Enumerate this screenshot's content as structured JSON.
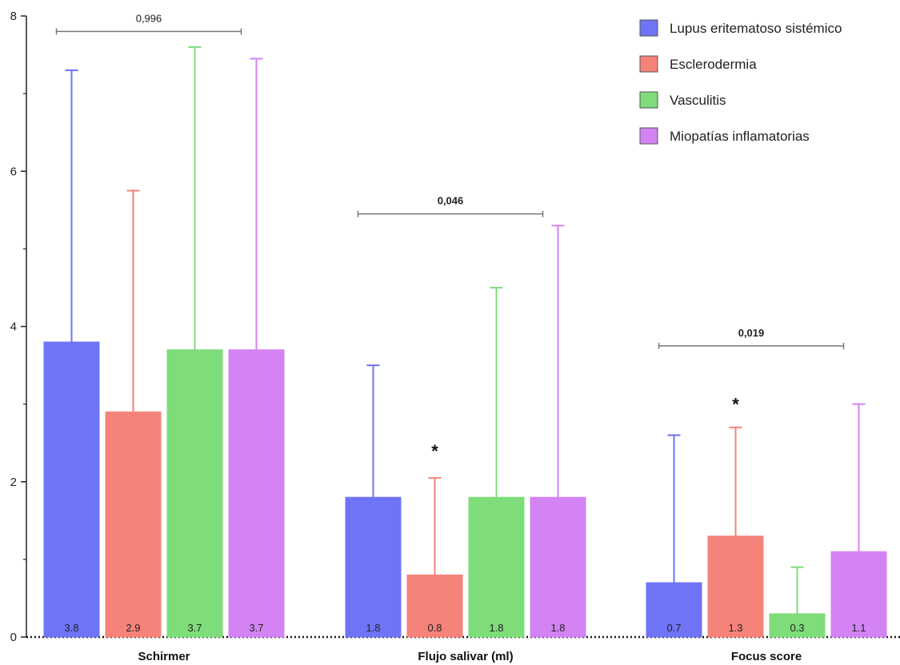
{
  "chart_data": {
    "type": "bar",
    "title": "",
    "xlabel": "",
    "ylabel": "",
    "ylim": [
      0,
      8
    ],
    "yticks": [
      0,
      2,
      4,
      6,
      8
    ],
    "grid": false,
    "legend_position": "top-right",
    "categories": [
      "Schirmer",
      "Flujo salivar (ml)",
      "Focus score"
    ],
    "series": [
      {
        "name": "Lupus eritematoso sistémico",
        "color": "#6f73f5",
        "values": [
          3.8,
          1.8,
          0.7
        ],
        "errors": [
          3.5,
          1.7,
          1.9
        ],
        "labels": [
          "3.8",
          "1.8",
          "0.7"
        ]
      },
      {
        "name": "Esclerodermia",
        "color": "#f5837a",
        "values": [
          2.9,
          0.8,
          1.3
        ],
        "errors": [
          2.85,
          1.25,
          1.4
        ],
        "labels": [
          "2.9",
          "0.8",
          "1.3"
        ]
      },
      {
        "name": "Vasculitis",
        "color": "#7fdc7a",
        "values": [
          3.7,
          1.8,
          0.3
        ],
        "errors": [
          3.9,
          2.7,
          0.6
        ],
        "labels": [
          "3.7",
          "1.8",
          "0.3"
        ]
      },
      {
        "name": "Miopatías inflamatorias",
        "color": "#d383f3",
        "values": [
          3.7,
          1.8,
          1.1
        ],
        "errors": [
          3.75,
          3.5,
          1.9
        ],
        "labels": [
          "3.7",
          "1.8",
          "1.1"
        ]
      }
    ],
    "significance": [
      {
        "category": "Schirmer",
        "label": "0,996",
        "y": 7.8,
        "bold": false
      },
      {
        "category": "Flujo salivar (ml)",
        "label": "0,046",
        "y": 5.45,
        "bold": true
      },
      {
        "category": "Focus score",
        "label": "0,019",
        "y": 3.75,
        "bold": true
      }
    ],
    "asterisks": [
      {
        "category": "Flujo salivar (ml)",
        "series": "Esclerodermia",
        "y": 2.4,
        "label": "*"
      },
      {
        "category": "Focus score",
        "series": "Esclerodermia",
        "y": 3.0,
        "label": "*"
      }
    ]
  }
}
